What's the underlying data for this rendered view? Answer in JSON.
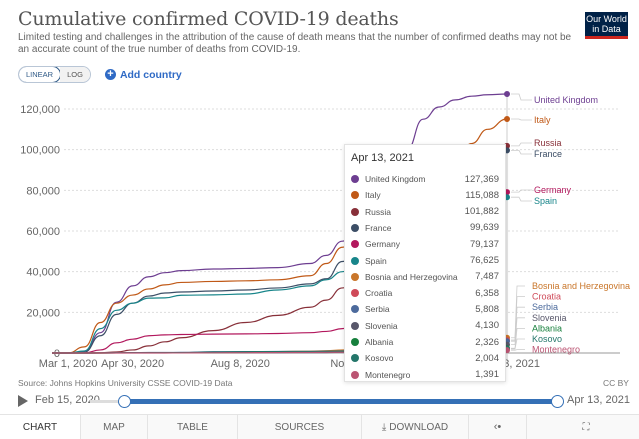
{
  "header": {
    "title": "Cumulative confirmed COVID-19 deaths",
    "subtitle": "Limited testing and challenges in the attribution of the cause of death means that the number of confirmed deaths may not be an accurate count of the true number of deaths from COVID-19.",
    "logo_line1": "Our World",
    "logo_line2": "in Data"
  },
  "controls": {
    "linear_label": "LINEAR",
    "log_label": "LOG",
    "add_country_label": "Add country",
    "scale_selected": "linear"
  },
  "tooltip": {
    "date": "Apr 13, 2021",
    "rows": [
      {
        "name": "United Kingdom",
        "value": "127,369",
        "color": "#6d3e91"
      },
      {
        "name": "Italy",
        "value": "115,088",
        "color": "#c05917"
      },
      {
        "name": "Russia",
        "value": "101,882",
        "color": "#883039"
      },
      {
        "name": "France",
        "value": "99,639",
        "color": "#3c4e66"
      },
      {
        "name": "Germany",
        "value": "79,137",
        "color": "#b2185d"
      },
      {
        "name": "Spain",
        "value": "76,625",
        "color": "#18858a"
      },
      {
        "name": "Bosnia and Herzegovina",
        "value": "7,487",
        "color": "#c9762a"
      },
      {
        "name": "Croatia",
        "value": "6,358",
        "color": "#cf4a59"
      },
      {
        "name": "Serbia",
        "value": "5,808",
        "color": "#4c6a9c"
      },
      {
        "name": "Slovenia",
        "value": "4,130",
        "color": "#58576a"
      },
      {
        "name": "Albania",
        "value": "2,326",
        "color": "#17803d"
      },
      {
        "name": "Kosovo",
        "value": "2,004",
        "color": "#24766a"
      },
      {
        "name": "Montenegro",
        "value": "1,391",
        "color": "#bb5573"
      }
    ]
  },
  "footer": {
    "source": "Source: Johns Hopkins University CSSE COVID-19 Data",
    "license": "CC BY"
  },
  "timeline": {
    "start_label": "Feb 15, 2020",
    "end_label": "Apr 13, 2021"
  },
  "tabs": [
    {
      "label": "CHART",
      "active": true
    },
    {
      "label": "MAP"
    },
    {
      "label": "TABLE"
    },
    {
      "label": "SOURCES"
    },
    {
      "label": "DOWNLOAD",
      "icon": "download-icon"
    },
    {
      "label": "",
      "icon": "share-icon"
    },
    {
      "label": "",
      "icon": "fullscreen-icon"
    }
  ],
  "chart_data": {
    "type": "line",
    "title": "Cumulative confirmed COVID-19 deaths",
    "xlabel": "",
    "ylabel": "",
    "x_range": [
      "2020-02-15",
      "2021-04-13"
    ],
    "ylim": [
      0,
      120000
    ],
    "y_ticks": [
      0,
      20000,
      40000,
      60000,
      80000,
      100000,
      120000
    ],
    "y_tick_labels": [
      "0",
      "20,000",
      "40,000",
      "60,000",
      "80,000",
      "100,000",
      "120,000"
    ],
    "x_ticks": [
      "2020-03-01",
      "2020-04-30",
      "2020-08-08",
      "2020-11-16",
      "2021-04-13"
    ],
    "x_tick_labels": [
      "Mar 1, 2020",
      "Apr 30, 2020",
      "Aug 8, 2020",
      "Nov 16",
      "Apr 13, 2021"
    ],
    "grid": "horizontal-dotted",
    "legend": "right-end-labels",
    "x_days": [
      0,
      15,
      30,
      45,
      60,
      75,
      90,
      105,
      120,
      150,
      180,
      210,
      240,
      255,
      270,
      285,
      300,
      315,
      330,
      345,
      360,
      375,
      390,
      405,
      423
    ],
    "series": [
      {
        "name": "United Kingdom",
        "color": "#6d3e91",
        "values": [
          0,
          0,
          500,
          10000,
          25000,
          33000,
          37500,
          39500,
          40500,
          41300,
          41600,
          42000,
          44000,
          48000,
          55000,
          62000,
          70000,
          82000,
          100000,
          115000,
          121000,
          124500,
          126300,
          127000,
          127369
        ]
      },
      {
        "name": "Italy",
        "color": "#c05917",
        "values": [
          0,
          30,
          3000,
          15000,
          24500,
          28500,
          31500,
          33500,
          34700,
          35200,
          35500,
          36000,
          38000,
          44000,
          52000,
          58000,
          64000,
          70000,
          76000,
          82000,
          88000,
          95000,
          103000,
          110000,
          115088
        ]
      },
      {
        "name": "Russia",
        "color": "#883039",
        "values": [
          0,
          0,
          0,
          100,
          500,
          1500,
          3500,
          5500,
          7500,
          11000,
          15000,
          18500,
          22500,
          26000,
          32000,
          38000,
          45000,
          52000,
          59000,
          67000,
          75000,
          83000,
          91000,
          97000,
          101882
        ]
      },
      {
        "name": "France",
        "color": "#3c4e66",
        "values": [
          0,
          2,
          400,
          8500,
          19000,
          24500,
          28000,
          29500,
          30000,
          30500,
          31000,
          32000,
          34000,
          36500,
          45000,
          52000,
          56000,
          61000,
          66000,
          72000,
          78000,
          84000,
          90000,
          96000,
          99639
        ]
      },
      {
        "name": "Germany",
        "color": "#b2185d",
        "values": [
          0,
          0,
          50,
          1500,
          5000,
          6800,
          8500,
          8900,
          9100,
          9300,
          9400,
          9600,
          10000,
          10600,
          12000,
          16000,
          22000,
          33000,
          45000,
          55000,
          65000,
          70000,
          74000,
          77000,
          79137
        ]
      },
      {
        "name": "Spain",
        "color": "#18858a",
        "values": [
          0,
          0,
          1000,
          12000,
          21000,
          24500,
          27000,
          27100,
          28400,
          28600,
          29000,
          31000,
          33000,
          36000,
          40000,
          44000,
          46000,
          50000,
          55000,
          60000,
          65000,
          71000,
          74000,
          75500,
          76625
        ]
      },
      {
        "name": "Bosnia and Herzegovina",
        "color": "#c9762a",
        "values": [
          0,
          0,
          0,
          10,
          40,
          60,
          100,
          160,
          200,
          300,
          500,
          700,
          900,
          1100,
          1500,
          2100,
          2800,
          3400,
          4000,
          4500,
          4900,
          5300,
          5900,
          6700,
          7487
        ]
      },
      {
        "name": "Croatia",
        "color": "#cf4a59",
        "values": [
          0,
          0,
          0,
          10,
          40,
          80,
          100,
          105,
          110,
          140,
          200,
          300,
          400,
          500,
          700,
          1200,
          2000,
          3000,
          4200,
          5000,
          5500,
          5700,
          5850,
          6100,
          6358
        ]
      },
      {
        "name": "Serbia",
        "color": "#4c6a9c",
        "values": [
          0,
          0,
          0,
          30,
          120,
          200,
          240,
          260,
          300,
          600,
          700,
          730,
          780,
          850,
          1000,
          1300,
          1900,
          2700,
          3300,
          3700,
          4000,
          4300,
          4700,
          5200,
          5808
        ]
      },
      {
        "name": "Slovenia",
        "color": "#58576a",
        "values": [
          0,
          0,
          0,
          20,
          80,
          100,
          105,
          108,
          110,
          120,
          130,
          140,
          160,
          200,
          400,
          800,
          1500,
          2200,
          3000,
          3500,
          3700,
          3850,
          3950,
          4050,
          4130
        ]
      },
      {
        "name": "Albania",
        "color": "#17803d",
        "values": [
          0,
          0,
          0,
          10,
          25,
          30,
          35,
          40,
          60,
          130,
          250,
          380,
          450,
          500,
          600,
          750,
          950,
          1200,
          1350,
          1500,
          1800,
          2100,
          2250,
          2300,
          2326
        ]
      },
      {
        "name": "Kosovo",
        "color": "#24766a",
        "values": [
          0,
          0,
          0,
          5,
          20,
          30,
          35,
          60,
          200,
          500,
          650,
          700,
          750,
          800,
          900,
          1100,
          1300,
          1400,
          1450,
          1480,
          1550,
          1700,
          1850,
          1950,
          2004
        ]
      },
      {
        "name": "Montenegro",
        "color": "#bb5573",
        "values": [
          0,
          0,
          0,
          2,
          5,
          9,
          9,
          12,
          30,
          80,
          150,
          220,
          280,
          330,
          400,
          500,
          600,
          700,
          800,
          900,
          1000,
          1150,
          1250,
          1340,
          1391
        ]
      }
    ],
    "end_labels_left_col": [
      "United Kingdom",
      "Italy",
      "Russia",
      "France",
      "Germany",
      "Spain"
    ],
    "end_labels_small": [
      "Bosnia and Herzegovina",
      "Croatia",
      "Serbia",
      "Slovenia",
      "Albania",
      "Kosovo",
      "Montenegro"
    ]
  }
}
